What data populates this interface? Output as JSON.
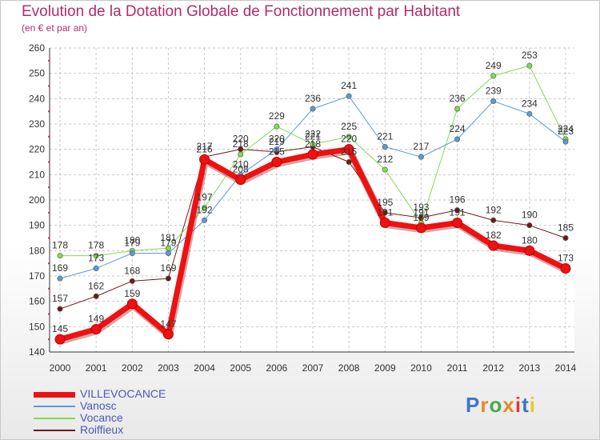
{
  "header": {
    "title": "Evolution de la Dotation Globale de Fonctionnement par Habitant",
    "subtitle": "(en € et par an)"
  },
  "logo": {
    "text": "Proxiti",
    "colors": [
      "#3a78c8",
      "#e8872a",
      "#4aa84a",
      "#e8872a",
      "#d83a3a",
      "#3a78c8",
      "#e8c82a"
    ]
  },
  "chart_data": {
    "type": "line",
    "title": "Evolution de la Dotation Globale de Fonctionnement par Habitant",
    "subtitle": "(en € et par an)",
    "xlabel": "",
    "ylabel": "",
    "ylim": [
      140,
      260
    ],
    "yticks": [
      140,
      150,
      160,
      170,
      180,
      190,
      200,
      210,
      220,
      230,
      240,
      250,
      260
    ],
    "x": [
      "2000",
      "2001",
      "2002",
      "2003",
      "2004",
      "2005",
      "2006",
      "2007",
      "2008",
      "2009",
      "2010",
      "2011",
      "2012",
      "2013",
      "2014"
    ],
    "grid": true,
    "series": [
      {
        "name": "Roiffieux",
        "color": "#6e1a1a",
        "width": 1,
        "values": [
          157,
          162,
          168,
          169,
          217,
          220,
          219,
          221,
          215,
          195,
          193,
          196,
          192,
          190,
          185
        ]
      },
      {
        "name": "Vocance",
        "color": "#7fdc50",
        "width": 1,
        "values": [
          178,
          178,
          180,
          181,
          197,
          218,
          229,
          222,
          225,
          212,
          191,
          236,
          249,
          253,
          224
        ]
      },
      {
        "name": "Vanosc",
        "color": "#5b9ad8",
        "width": 1,
        "values": [
          169,
          173,
          179,
          179,
          192,
          210,
          220,
          236,
          241,
          221,
          217,
          224,
          239,
          234,
          223
        ]
      },
      {
        "name": "VILLEVOCANCE",
        "color": "#ee1111",
        "width": 7,
        "values": [
          145,
          149,
          159,
          147,
          216,
          208,
          215,
          218,
          220,
          191,
          189,
          191,
          182,
          180,
          173
        ]
      }
    ]
  },
  "legend": [
    {
      "name": "VILLEVOCANCE",
      "color": "#ee1111"
    },
    {
      "name": "Vanosc",
      "color": "#5b9ad8"
    },
    {
      "name": "Vocance",
      "color": "#7fdc50"
    },
    {
      "name": "Roiffieux",
      "color": "#6e1a1a"
    }
  ]
}
